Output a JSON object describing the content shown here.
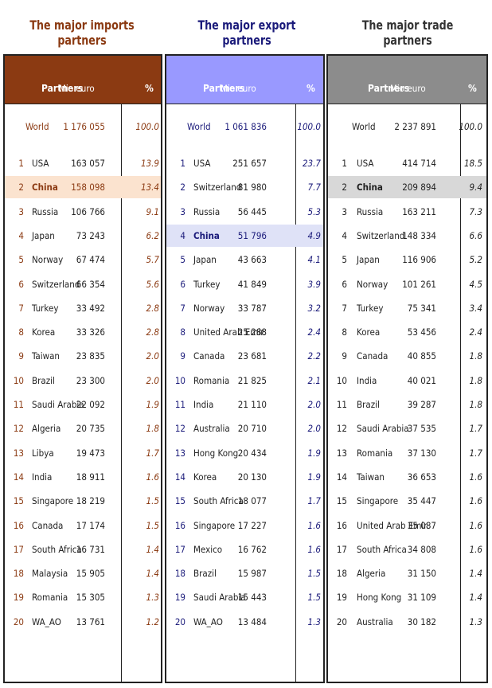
{
  "imports": {
    "title": "The major imports partners",
    "header": {
      "partners": "Partners",
      "value": "Mio euro",
      "pct": "%"
    },
    "world": {
      "name": "World",
      "value": "1 176 055",
      "pct": "100.0"
    },
    "rows": [
      {
        "rank": "1",
        "name": "USA",
        "value": "163 057",
        "pct": "13.9"
      },
      {
        "rank": "2",
        "name": "China",
        "value": "158 098",
        "pct": "13.4",
        "highlight": true
      },
      {
        "rank": "3",
        "name": "Russia",
        "value": "106 766",
        "pct": "9.1"
      },
      {
        "rank": "4",
        "name": "Japan",
        "value": "73 243",
        "pct": "6.2"
      },
      {
        "rank": "5",
        "name": "Norway",
        "value": "67 474",
        "pct": "5.7"
      },
      {
        "rank": "6",
        "name": "Switzerland",
        "value": "66 354",
        "pct": "5.6"
      },
      {
        "rank": "7",
        "name": "Turkey",
        "value": "33 492",
        "pct": "2.8"
      },
      {
        "rank": "8",
        "name": "Korea",
        "value": "33 326",
        "pct": "2.8"
      },
      {
        "rank": "9",
        "name": "Taiwan",
        "value": "23 835",
        "pct": "2.0"
      },
      {
        "rank": "10",
        "name": "Brazil",
        "value": "23 300",
        "pct": "2.0"
      },
      {
        "rank": "11",
        "name": "Saudi Arabia",
        "value": "22 092",
        "pct": "1.9"
      },
      {
        "rank": "12",
        "name": "Algeria",
        "value": "20 735",
        "pct": "1.8"
      },
      {
        "rank": "13",
        "name": "Libya",
        "value": "19 473",
        "pct": "1.7"
      },
      {
        "rank": "14",
        "name": "India",
        "value": "18 911",
        "pct": "1.6"
      },
      {
        "rank": "15",
        "name": "Singapore",
        "value": "18 219",
        "pct": "1.5"
      },
      {
        "rank": "16",
        "name": "Canada",
        "value": "17 174",
        "pct": "1.5"
      },
      {
        "rank": "17",
        "name": "South Africa",
        "value": "16 731",
        "pct": "1.4"
      },
      {
        "rank": "18",
        "name": "Malaysia",
        "value": "15 905",
        "pct": "1.4"
      },
      {
        "rank": "19",
        "name": "Romania",
        "value": "15 305",
        "pct": "1.3"
      },
      {
        "rank": "20",
        "name": "WA_AO",
        "value": "13 761",
        "pct": "1.2"
      }
    ]
  },
  "exports": {
    "title": "The major export partners",
    "header": {
      "partners": "Partners",
      "value": "Mio euro",
      "pct": "%"
    },
    "world": {
      "name": "World",
      "value": "1 061 836",
      "pct": "100.0"
    },
    "rows": [
      {
        "rank": "1",
        "name": "USA",
        "value": "251 657",
        "pct": "23.7"
      },
      {
        "rank": "2",
        "name": "Switzerland",
        "value": "81 980",
        "pct": "7.7"
      },
      {
        "rank": "3",
        "name": "Russia",
        "value": "56 445",
        "pct": "5.3"
      },
      {
        "rank": "4",
        "name": "China",
        "value": "51 796",
        "pct": "4.9",
        "highlight": true
      },
      {
        "rank": "5",
        "name": "Japan",
        "value": "43 663",
        "pct": "4.1"
      },
      {
        "rank": "6",
        "name": "Turkey",
        "value": "41 849",
        "pct": "3.9"
      },
      {
        "rank": "7",
        "name": "Norway",
        "value": "33 787",
        "pct": "3.2"
      },
      {
        "rank": "8",
        "name": "United Arab Emir.",
        "value": "25 288",
        "pct": "2.4"
      },
      {
        "rank": "9",
        "name": "Canada",
        "value": "23 681",
        "pct": "2.2"
      },
      {
        "rank": "10",
        "name": "Romania",
        "value": "21 825",
        "pct": "2.1"
      },
      {
        "rank": "11",
        "name": "India",
        "value": "21 110",
        "pct": "2.0"
      },
      {
        "rank": "12",
        "name": "Australia",
        "value": "20 710",
        "pct": "2.0"
      },
      {
        "rank": "13",
        "name": "Hong Kong",
        "value": "20 434",
        "pct": "1.9"
      },
      {
        "rank": "14",
        "name": "Korea",
        "value": "20 130",
        "pct": "1.9"
      },
      {
        "rank": "15",
        "name": "South Africa",
        "value": "18 077",
        "pct": "1.7"
      },
      {
        "rank": "16",
        "name": "Singapore",
        "value": "17 227",
        "pct": "1.6"
      },
      {
        "rank": "17",
        "name": "Mexico",
        "value": "16 762",
        "pct": "1.6"
      },
      {
        "rank": "18",
        "name": "Brazil",
        "value": "15 987",
        "pct": "1.5"
      },
      {
        "rank": "19",
        "name": "Saudi Arabia",
        "value": "15 443",
        "pct": "1.5"
      },
      {
        "rank": "20",
        "name": "WA_AO",
        "value": "13 484",
        "pct": "1.3"
      }
    ]
  },
  "trade": {
    "title": "The major trade partners",
    "header": {
      "partners": "Partners",
      "value": "Mio euro",
      "pct": "%"
    },
    "world": {
      "name": "World",
      "value": "2 237 891",
      "pct": "100.0"
    },
    "rows": [
      {
        "rank": "1",
        "name": "USA",
        "value": "414 714",
        "pct": "18.5"
      },
      {
        "rank": "2",
        "name": "China",
        "value": "209 894",
        "pct": "9.4",
        "highlight": true
      },
      {
        "rank": "3",
        "name": "Russia",
        "value": "163 211",
        "pct": "7.3"
      },
      {
        "rank": "4",
        "name": "Switzerland",
        "value": "148 334",
        "pct": "6.6"
      },
      {
        "rank": "5",
        "name": "Japan",
        "value": "116 906",
        "pct": "5.2"
      },
      {
        "rank": "6",
        "name": "Norway",
        "value": "101 261",
        "pct": "4.5"
      },
      {
        "rank": "7",
        "name": "Turkey",
        "value": "75 341",
        "pct": "3.4"
      },
      {
        "rank": "8",
        "name": "Korea",
        "value": "53 456",
        "pct": "2.4"
      },
      {
        "rank": "9",
        "name": "Canada",
        "value": "40 855",
        "pct": "1.8"
      },
      {
        "rank": "10",
        "name": "India",
        "value": "40 021",
        "pct": "1.8"
      },
      {
        "rank": "11",
        "name": "Brazil",
        "value": "39 287",
        "pct": "1.8"
      },
      {
        "rank": "12",
        "name": "Saudi Arabia",
        "value": "37 535",
        "pct": "1.7"
      },
      {
        "rank": "13",
        "name": "Romania",
        "value": "37 130",
        "pct": "1.7"
      },
      {
        "rank": "14",
        "name": "Taiwan",
        "value": "36 653",
        "pct": "1.6"
      },
      {
        "rank": "15",
        "name": "Singapore",
        "value": "35 447",
        "pct": "1.6"
      },
      {
        "rank": "16",
        "name": "United Arab Emir.",
        "value": "35 087",
        "pct": "1.6"
      },
      {
        "rank": "17",
        "name": "South Africa",
        "value": "34 808",
        "pct": "1.6"
      },
      {
        "rank": "18",
        "name": "Algeria",
        "value": "31 150",
        "pct": "1.4"
      },
      {
        "rank": "19",
        "name": "Hong Kong",
        "value": "31 109",
        "pct": "1.4"
      },
      {
        "rank": "20",
        "name": "Australia",
        "value": "30 182",
        "pct": "1.3"
      }
    ]
  },
  "colors": {
    "imports_title": "#8b3a12",
    "imports_header_bg": "#8b3a12",
    "imports_text": "#8b3a12",
    "imports_highlight": "#fbe3cf",
    "exports_title": "#1a1a7a",
    "exports_header_bg": "#9999ff",
    "exports_text": "#1a1a7a",
    "exports_highlight": "#dfe2f7",
    "trade_title": "#333333",
    "trade_header_bg": "#8c8c8c",
    "trade_text": "#222222",
    "trade_highlight": "#d8d8d8"
  }
}
